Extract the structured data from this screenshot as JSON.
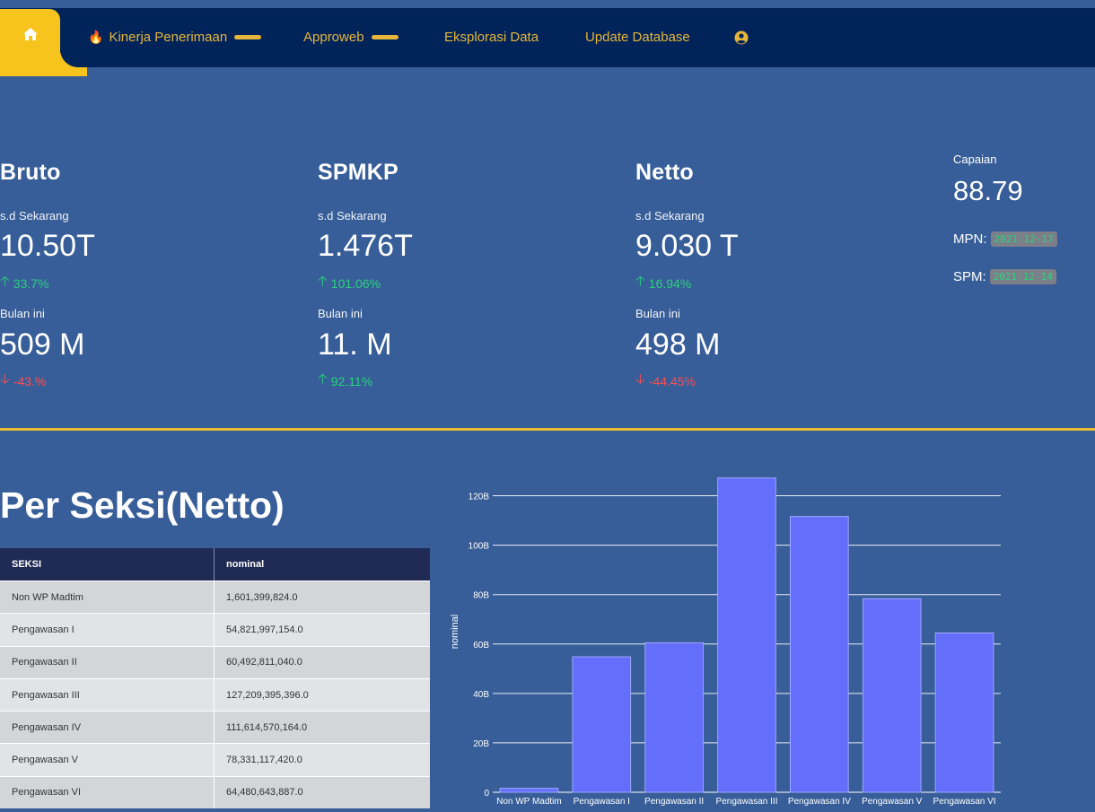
{
  "nav": {
    "items": [
      {
        "label": "Kinerja Penerimaan",
        "has_flame": true,
        "has_caret": true
      },
      {
        "label": "Approweb",
        "has_flame": false,
        "has_caret": true
      },
      {
        "label": "Eksplorasi Data",
        "has_flame": false,
        "has_caret": false
      },
      {
        "label": "Update Database",
        "has_flame": false,
        "has_caret": false
      }
    ],
    "icons": {
      "home": "home-icon",
      "user": "user-circle-icon",
      "flame": "flame-icon"
    }
  },
  "stats": [
    {
      "title": "Bruto",
      "sd_label": "s.d Sekarang",
      "sd_value": "10.50T",
      "sd_delta": "33.7%",
      "sd_dir": "up",
      "month_label": "Bulan ini",
      "month_value": "509 M",
      "month_delta": "-43.%",
      "month_dir": "down"
    },
    {
      "title": "SPMKP",
      "sd_label": "s.d Sekarang",
      "sd_value": "1.476T",
      "sd_delta": "101.06%",
      "sd_dir": "up",
      "month_label": "Bulan ini",
      "month_value": "11. M",
      "month_delta": "92.11%",
      "month_dir": "up"
    },
    {
      "title": "Netto",
      "sd_label": "s.d Sekarang",
      "sd_value": "9.030 T",
      "sd_delta": "16.94%",
      "sd_dir": "up",
      "month_label": "Bulan ini",
      "month_value": "498 M",
      "month_delta": "-44.45%",
      "month_dir": "down"
    }
  ],
  "capaian": {
    "label": "Capaian",
    "value": "88.79",
    "mpn_label": "MPN:",
    "mpn_date": "2021-12-17",
    "spm_label": "SPM:",
    "spm_date": "2021-12-14"
  },
  "colors": {
    "background": "#375e98",
    "navbar": "#00245a",
    "accent": "#f7c31d",
    "up": "#2bd17e",
    "down": "#ff4d4f",
    "bar": "#636efa"
  },
  "section": {
    "title": "Per Seksi(Netto)"
  },
  "table": {
    "headers": [
      "SEKSI",
      "nominal"
    ],
    "rows": [
      [
        "Non WP Madtim",
        "1,601,399,824.0"
      ],
      [
        "Pengawasan I",
        "54,821,997,154.0"
      ],
      [
        "Pengawasan II",
        "60,492,811,040.0"
      ],
      [
        "Pengawasan III",
        "127,209,395,396.0"
      ],
      [
        "Pengawasan IV",
        "111,614,570,164.0"
      ],
      [
        "Pengawasan V",
        "78,331,117,420.0"
      ],
      [
        "Pengawasan VI",
        "64,480,643,887.0"
      ]
    ]
  },
  "chart_data": {
    "type": "bar",
    "categories": [
      "Non WP Madtim",
      "Pengawasan I",
      "Pengawasan II",
      "Pengawasan III",
      "Pengawasan IV",
      "Pengawasan V",
      "Pengawasan VI"
    ],
    "values": [
      1601399824.0,
      54821997154.0,
      60492811040.0,
      127209395396.0,
      111614570164.0,
      78331117420.0,
      64480643887.0
    ],
    "ylabel": "nominal",
    "xlabel": "",
    "title": "",
    "ylim": [
      0,
      130000000000
    ],
    "yticks": [
      0,
      20000000000,
      40000000000,
      60000000000,
      80000000000,
      100000000000,
      120000000000
    ],
    "ytick_labels": [
      "0",
      "20B",
      "40B",
      "60B",
      "80B",
      "100B",
      "120B"
    ],
    "grid": true,
    "color": "#636efa"
  }
}
